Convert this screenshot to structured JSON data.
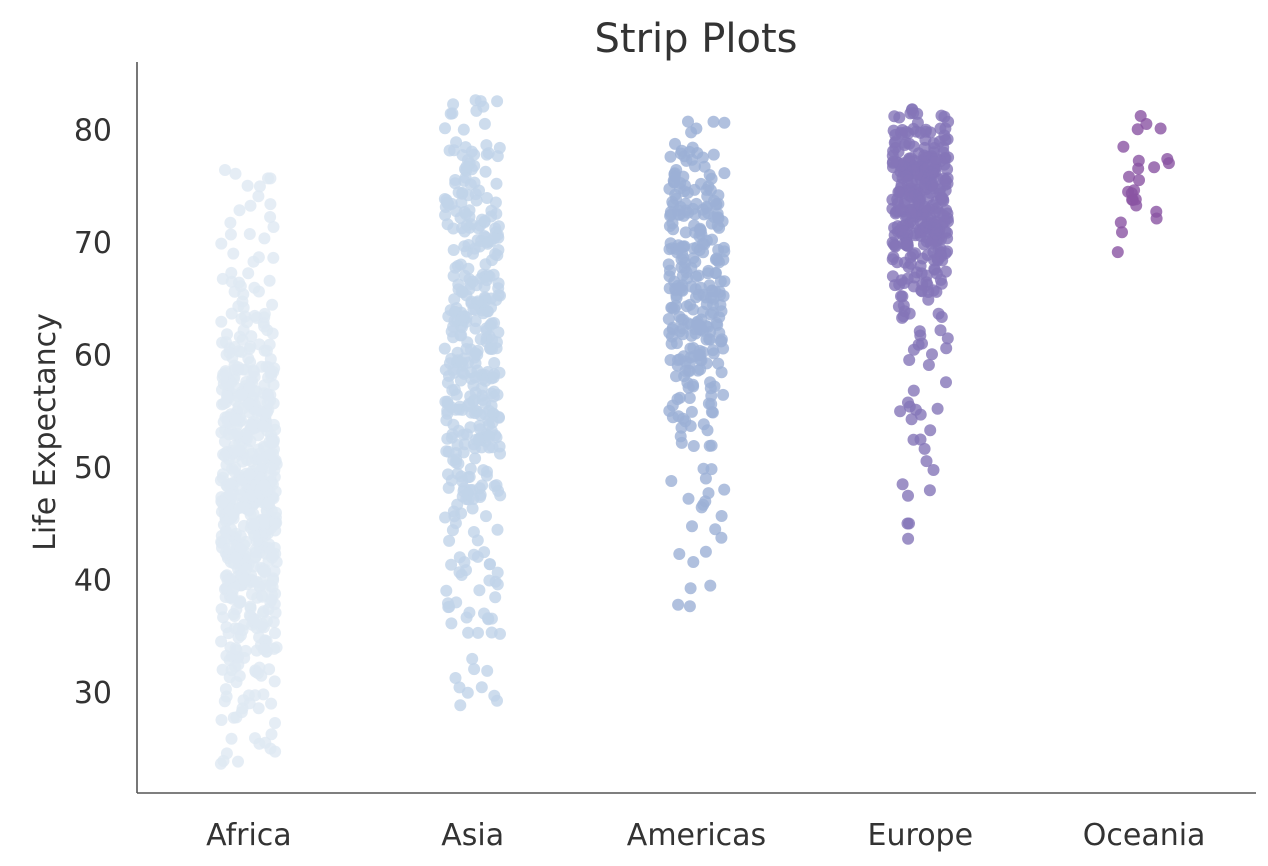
{
  "chart_data": {
    "type": "scatter",
    "subtype": "strip",
    "title": "Strip Plots",
    "xlabel": "",
    "ylabel": "Life Expectancy",
    "ylim": [
      21,
      86
    ],
    "yticks": [
      30,
      40,
      50,
      60,
      70,
      80
    ],
    "grid": false,
    "categories": [
      "Africa",
      "Asia",
      "Americas",
      "Europe",
      "Oceania"
    ],
    "series": [
      {
        "name": "Africa",
        "color": "#dfe9f3",
        "n_points": 624,
        "range": [
          23.6,
          76.4
        ],
        "bulk_range": [
          34,
          62
        ],
        "notes": "densest between 35 and 60; lowest outlier near 23.6"
      },
      {
        "name": "Asia",
        "color": "#c0d3e8",
        "n_points": 396,
        "range": [
          28.8,
          82.6
        ],
        "bulk_range": [
          42,
          78
        ],
        "notes": "spread widely; densest between 55 and 75"
      },
      {
        "name": "Americas",
        "color": "#9cb0d6",
        "n_points": 300,
        "range": [
          37.6,
          80.7
        ],
        "bulk_range": [
          55,
          78
        ],
        "notes": "densest between 60 and 78"
      },
      {
        "name": "Europe",
        "color": "#8476b8",
        "n_points": 360,
        "range": [
          43.6,
          81.8
        ],
        "bulk_range": [
          66,
          81
        ],
        "notes": "densest between 67 and 80; a few low outliers"
      },
      {
        "name": "Oceania",
        "color": "#8a54a3",
        "n_points": 24,
        "range": [
          69.1,
          81.2
        ],
        "bulk_range": [
          69,
          81
        ],
        "notes": "small group between 69 and 81"
      }
    ]
  }
}
